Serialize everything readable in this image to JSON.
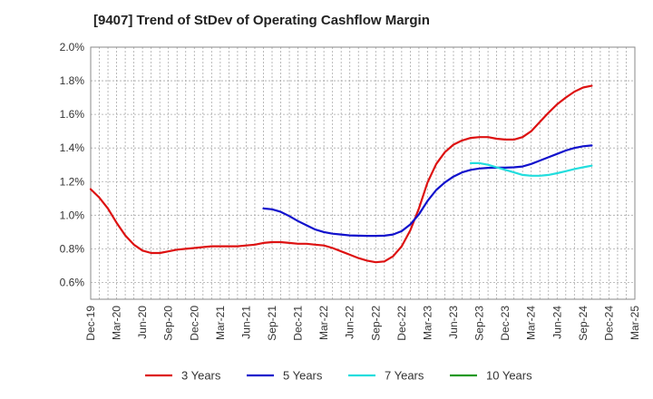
{
  "chart_data": {
    "type": "line",
    "title": "[9407]  Trend of StDev of Operating Cashflow Margin",
    "xlabel": "",
    "ylabel": "",
    "x_ticks": [
      "Dec-19",
      "Mar-20",
      "Jun-20",
      "Sep-20",
      "Dec-20",
      "Mar-21",
      "Jun-21",
      "Sep-21",
      "Dec-21",
      "Mar-22",
      "Jun-22",
      "Sep-22",
      "Dec-22",
      "Mar-23",
      "Jun-23",
      "Sep-23",
      "Dec-23",
      "Mar-24",
      "Jun-24",
      "Sep-24",
      "Dec-24",
      "Mar-25"
    ],
    "y_ticks": [
      "0.6%",
      "0.8%",
      "1.0%",
      "1.2%",
      "1.4%",
      "1.6%",
      "1.8%",
      "2.0%"
    ],
    "ylim": [
      0.5,
      2.0
    ],
    "grid": true,
    "legend_position": "bottom",
    "series": [
      {
        "name": "3 Years",
        "color": "#dd1111",
        "points": [
          [
            "Dec-19",
            1.155
          ],
          [
            "Jan-20",
            1.105
          ],
          [
            "Feb-20",
            1.04
          ],
          [
            "Mar-20",
            0.955
          ],
          [
            "Apr-20",
            0.88
          ],
          [
            "May-20",
            0.825
          ],
          [
            "Jun-20",
            0.79
          ],
          [
            "Jul-20",
            0.775
          ],
          [
            "Aug-20",
            0.775
          ],
          [
            "Sep-20",
            0.785
          ],
          [
            "Oct-20",
            0.795
          ],
          [
            "Nov-20",
            0.8
          ],
          [
            "Dec-20",
            0.805
          ],
          [
            "Jan-21",
            0.81
          ],
          [
            "Feb-21",
            0.815
          ],
          [
            "Mar-21",
            0.815
          ],
          [
            "Apr-21",
            0.815
          ],
          [
            "May-21",
            0.815
          ],
          [
            "Jun-21",
            0.82
          ],
          [
            "Jul-21",
            0.825
          ],
          [
            "Aug-21",
            0.835
          ],
          [
            "Sep-21",
            0.84
          ],
          [
            "Oct-21",
            0.84
          ],
          [
            "Nov-21",
            0.835
          ],
          [
            "Dec-21",
            0.83
          ],
          [
            "Jan-22",
            0.83
          ],
          [
            "Feb-22",
            0.825
          ],
          [
            "Mar-22",
            0.82
          ],
          [
            "Apr-22",
            0.805
          ],
          [
            "May-22",
            0.785
          ],
          [
            "Jun-22",
            0.765
          ],
          [
            "Jul-22",
            0.745
          ],
          [
            "Aug-22",
            0.73
          ],
          [
            "Sep-22",
            0.72
          ],
          [
            "Oct-22",
            0.725
          ],
          [
            "Nov-22",
            0.755
          ],
          [
            "Dec-22",
            0.815
          ],
          [
            "Jan-23",
            0.91
          ],
          [
            "Feb-23",
            1.04
          ],
          [
            "Mar-23",
            1.195
          ],
          [
            "Apr-23",
            1.305
          ],
          [
            "May-23",
            1.375
          ],
          [
            "Jun-23",
            1.42
          ],
          [
            "Jul-23",
            1.445
          ],
          [
            "Aug-23",
            1.46
          ],
          [
            "Sep-23",
            1.465
          ],
          [
            "Oct-23",
            1.465
          ],
          [
            "Nov-23",
            1.455
          ],
          [
            "Dec-23",
            1.45
          ],
          [
            "Jan-24",
            1.45
          ],
          [
            "Feb-24",
            1.465
          ],
          [
            "Mar-24",
            1.5
          ],
          [
            "Apr-24",
            1.555
          ],
          [
            "May-24",
            1.61
          ],
          [
            "Jun-24",
            1.66
          ],
          [
            "Jul-24",
            1.7
          ],
          [
            "Aug-24",
            1.735
          ],
          [
            "Sep-24",
            1.76
          ],
          [
            "Oct-24",
            1.77
          ]
        ]
      },
      {
        "name": "5 Years",
        "color": "#1111cc",
        "points": [
          [
            "Aug-21",
            1.04
          ],
          [
            "Sep-21",
            1.035
          ],
          [
            "Oct-21",
            1.02
          ],
          [
            "Nov-21",
            0.995
          ],
          [
            "Dec-21",
            0.965
          ],
          [
            "Jan-22",
            0.94
          ],
          [
            "Feb-22",
            0.915
          ],
          [
            "Mar-22",
            0.9
          ],
          [
            "Apr-22",
            0.89
          ],
          [
            "May-22",
            0.885
          ],
          [
            "Jun-22",
            0.88
          ],
          [
            "Jul-22",
            0.878
          ],
          [
            "Aug-22",
            0.877
          ],
          [
            "Sep-22",
            0.877
          ],
          [
            "Oct-22",
            0.878
          ],
          [
            "Nov-22",
            0.885
          ],
          [
            "Dec-22",
            0.905
          ],
          [
            "Jan-23",
            0.945
          ],
          [
            "Feb-23",
            1.005
          ],
          [
            "Mar-23",
            1.085
          ],
          [
            "Apr-23",
            1.15
          ],
          [
            "May-23",
            1.195
          ],
          [
            "Jun-23",
            1.23
          ],
          [
            "Jul-23",
            1.255
          ],
          [
            "Aug-23",
            1.27
          ],
          [
            "Sep-23",
            1.278
          ],
          [
            "Oct-23",
            1.282
          ],
          [
            "Nov-23",
            1.283
          ],
          [
            "Dec-23",
            1.283
          ],
          [
            "Jan-24",
            1.285
          ],
          [
            "Feb-24",
            1.29
          ],
          [
            "Mar-24",
            1.305
          ],
          [
            "Apr-24",
            1.325
          ],
          [
            "May-24",
            1.345
          ],
          [
            "Jun-24",
            1.365
          ],
          [
            "Jul-24",
            1.385
          ],
          [
            "Aug-24",
            1.4
          ],
          [
            "Sep-24",
            1.41
          ],
          [
            "Oct-24",
            1.415
          ]
        ]
      },
      {
        "name": "7 Years",
        "color": "#22dddd",
        "points": [
          [
            "Aug-23",
            1.31
          ],
          [
            "Sep-23",
            1.31
          ],
          [
            "Oct-23",
            1.3
          ],
          [
            "Nov-23",
            1.285
          ],
          [
            "Dec-23",
            1.27
          ],
          [
            "Jan-24",
            1.255
          ],
          [
            "Feb-24",
            1.24
          ],
          [
            "Mar-24",
            1.235
          ],
          [
            "Apr-24",
            1.235
          ],
          [
            "May-24",
            1.24
          ],
          [
            "Jun-24",
            1.25
          ],
          [
            "Jul-24",
            1.262
          ],
          [
            "Aug-24",
            1.275
          ],
          [
            "Sep-24",
            1.285
          ],
          [
            "Oct-24",
            1.295
          ]
        ]
      },
      {
        "name": "10 Years",
        "color": "#229922",
        "points": []
      }
    ]
  }
}
